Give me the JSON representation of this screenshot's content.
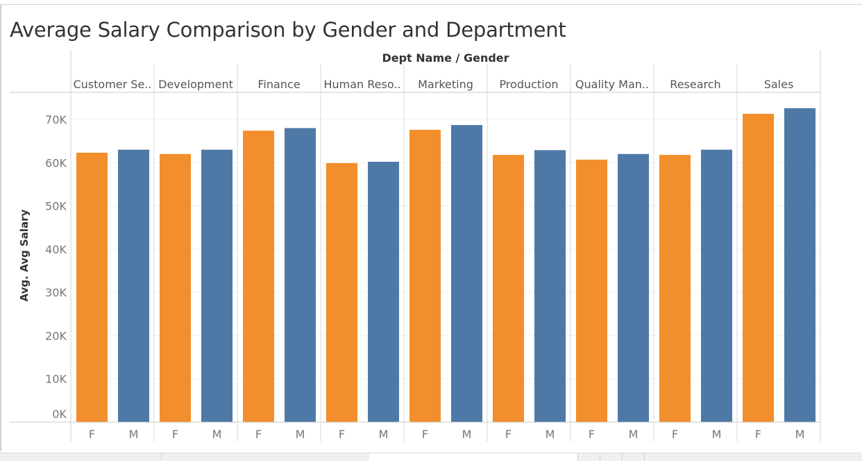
{
  "title": "Average Salary Comparison by Gender and Department",
  "chart_data": {
    "type": "bar",
    "header": "Dept Name  /  Gender",
    "ylabel": "Avg. Avg Salary",
    "ylim": [
      0,
      75000
    ],
    "yticks": [
      0,
      10000,
      20000,
      30000,
      40000,
      50000,
      60000,
      70000
    ],
    "ytick_labels": [
      "0K",
      "10K",
      "20K",
      "30K",
      "40K",
      "50K",
      "60K",
      "70K"
    ],
    "grid": true,
    "legend": "none",
    "colors": {
      "F": "#f28e2b",
      "M": "#4e79a7"
    },
    "departments": [
      {
        "label": "Customer Se..",
        "F": 62300,
        "M": 63000
      },
      {
        "label": "Development",
        "F": 62000,
        "M": 63000
      },
      {
        "label": "Finance",
        "F": 67400,
        "M": 68000
      },
      {
        "label": "Human Reso..",
        "F": 59900,
        "M": 60200
      },
      {
        "label": "Marketing",
        "F": 67600,
        "M": 68700
      },
      {
        "label": "Production",
        "F": 61800,
        "M": 62900
      },
      {
        "label": "Quality Man..",
        "F": 60700,
        "M": 62000
      },
      {
        "label": "Research",
        "F": 61800,
        "M": 63000
      },
      {
        "label": "Sales",
        "F": 71300,
        "M": 72600
      }
    ],
    "genders": [
      "F",
      "M"
    ]
  }
}
